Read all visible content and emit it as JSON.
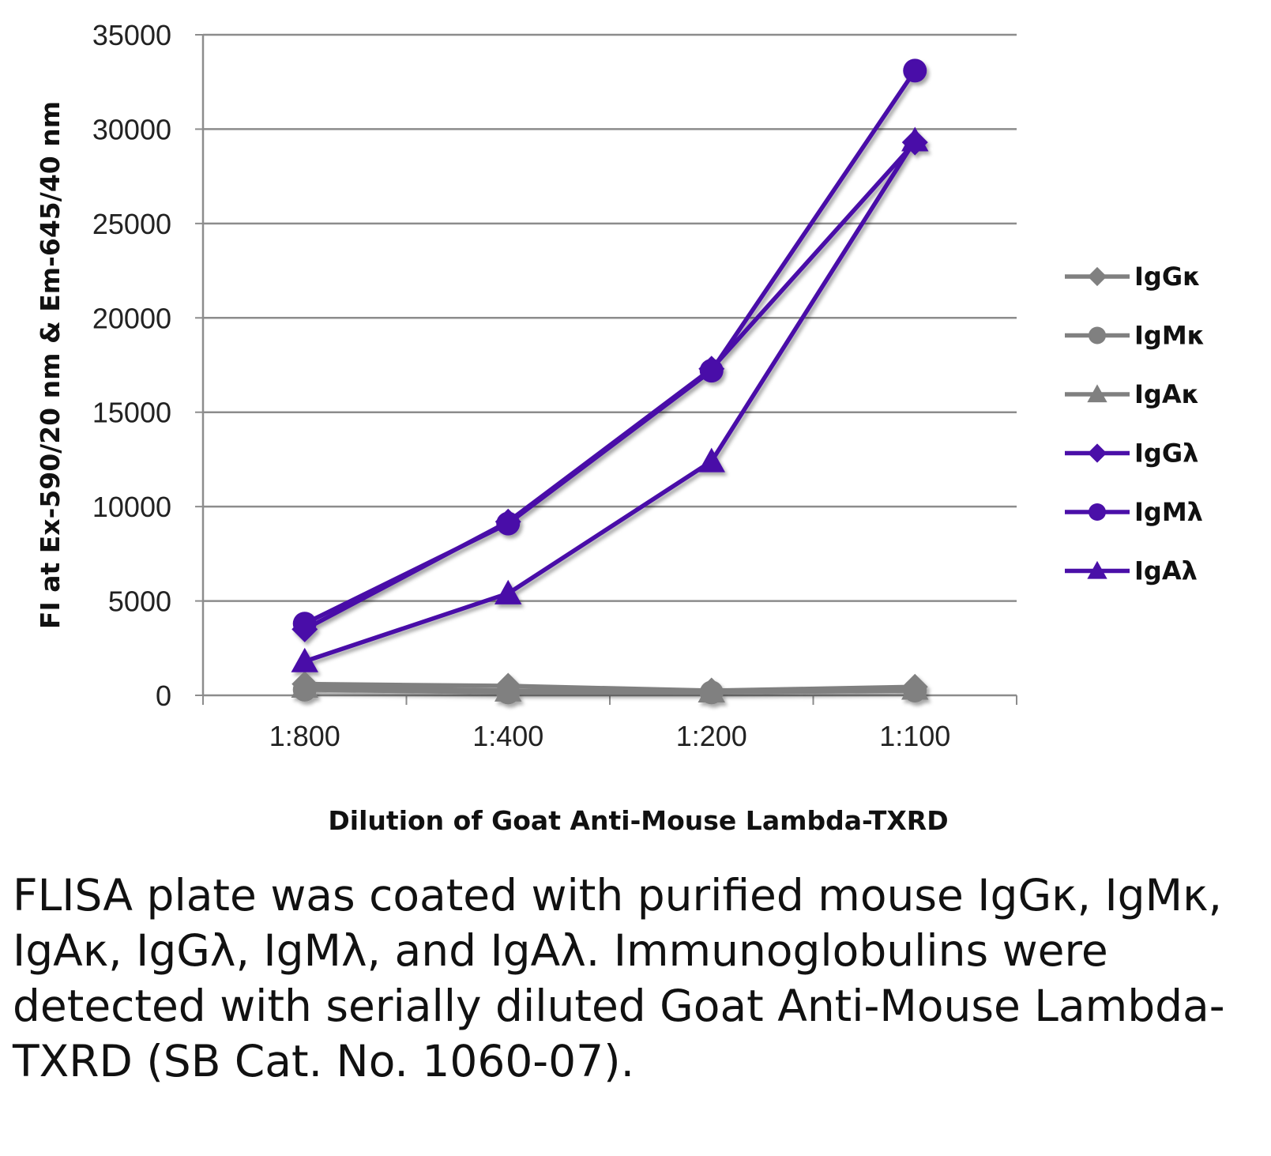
{
  "chart_data": {
    "type": "line",
    "categories": [
      "1:800",
      "1:400",
      "1:200",
      "1:100"
    ],
    "xlabel": "Dilution of Goat Anti-Mouse Lambda-TXRD",
    "ylabel": "FI at Ex-590/20 nm & Em-645/40 nm",
    "ylim": [
      0,
      35000
    ],
    "yticks": [
      0,
      5000,
      10000,
      15000,
      20000,
      25000,
      30000,
      35000
    ],
    "grid": true,
    "legend_position": "right",
    "series": [
      {
        "name": "IgGκ",
        "marker": "diamond",
        "color": "#808080",
        "values": [
          600,
          500,
          250,
          450
        ]
      },
      {
        "name": "IgMκ",
        "marker": "circle",
        "color": "#808080",
        "values": [
          300,
          150,
          150,
          250
        ]
      },
      {
        "name": "IgAκ",
        "marker": "triangle",
        "color": "#808080",
        "values": [
          450,
          250,
          200,
          350
        ]
      },
      {
        "name": "IgGλ",
        "marker": "diamond",
        "color": "#4a0fa8",
        "values": [
          3500,
          9200,
          17300,
          29300
        ]
      },
      {
        "name": "IgMλ",
        "marker": "circle",
        "color": "#4a0fa8",
        "values": [
          3800,
          9100,
          17200,
          33100
        ]
      },
      {
        "name": "IgAλ",
        "marker": "triangle",
        "color": "#4a0fa8",
        "values": [
          1800,
          5400,
          12400,
          29400
        ]
      }
    ]
  },
  "caption": "FLISA plate was coated with purified mouse IgGκ, IgMκ, IgAκ, IgGλ, IgMλ, and IgAλ. Immunoglobulins were detected with serially diluted Goat Anti-Mouse Lambda-TXRD (SB Cat. No. 1060-07)."
}
